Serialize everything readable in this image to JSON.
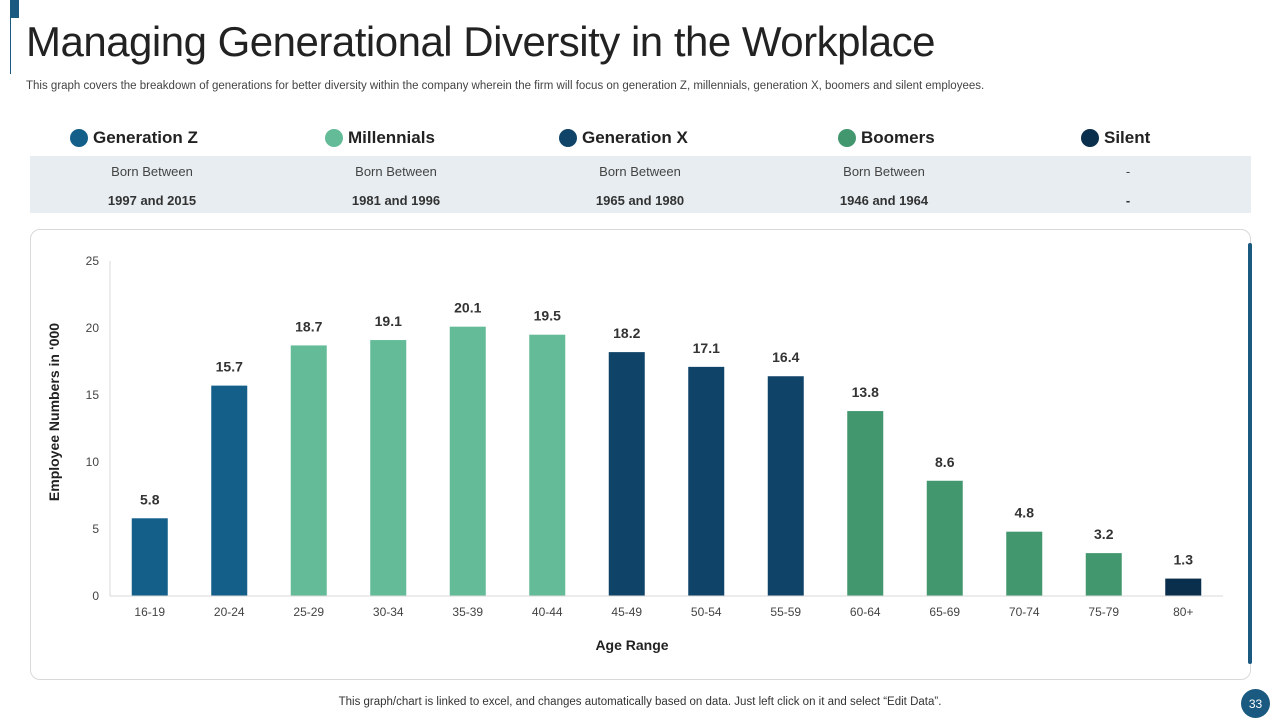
{
  "header": {
    "title": "Managing Generational Diversity in the Workplace",
    "subtitle": "This graph covers the breakdown of generations for better diversity within the company wherein the firm will focus on generation Z, millennials, generation X, boomers and silent employees."
  },
  "generations": [
    {
      "name": "Generation Z",
      "color": "#145f8a",
      "born_label": "Born Between",
      "years": "1997  and 2015"
    },
    {
      "name": "Millennials",
      "color": "#63bb98",
      "born_label": "Born Between",
      "years": "1981  and 1996"
    },
    {
      "name": "Generation X",
      "color": "#0f4368",
      "born_label": "Born Between",
      "years": "1965  and 1980"
    },
    {
      "name": "Boomers",
      "color": "#42976f",
      "born_label": "Born Between",
      "years": "1946  and 1964"
    },
    {
      "name": "Silent",
      "color": "#0a2f4c",
      "born_label": "-",
      "years": "-"
    }
  ],
  "chart_data": {
    "type": "bar",
    "title": "",
    "xlabel": "Age Range",
    "ylabel": "Employee Numbers in ‘000",
    "ylim": [
      0,
      25
    ],
    "yticks": [
      0,
      5,
      10,
      15,
      20,
      25
    ],
    "grid": false,
    "categories": [
      "16-19",
      "20-24",
      "25-29",
      "30-34",
      "35-39",
      "40-44",
      "45-49",
      "50-54",
      "55-59",
      "60-64",
      "65-69",
      "70-74",
      "75-79",
      "80+"
    ],
    "values": [
      5.8,
      15.7,
      18.7,
      19.1,
      20.1,
      19.5,
      18.2,
      17.1,
      16.4,
      13.8,
      8.6,
      4.8,
      3.2,
      1.3
    ],
    "data_labels": [
      "5.8",
      "15.7",
      "18.7",
      "19.1",
      "20.1",
      "19.5",
      "18.2",
      "17.1",
      "16.4",
      "13.8",
      "8.6",
      "4.8",
      "3.2",
      "1.3"
    ],
    "bar_generation": [
      "Generation Z",
      "Generation Z",
      "Millennials",
      "Millennials",
      "Millennials",
      "Millennials",
      "Generation X",
      "Generation X",
      "Generation X",
      "Boomers",
      "Boomers",
      "Boomers",
      "Boomers",
      "Silent"
    ]
  },
  "footer": {
    "note": "This graph/chart is linked to excel,  and changes automatically based on data. Just left click on it and select “Edit Data”.",
    "page_number": "33"
  }
}
